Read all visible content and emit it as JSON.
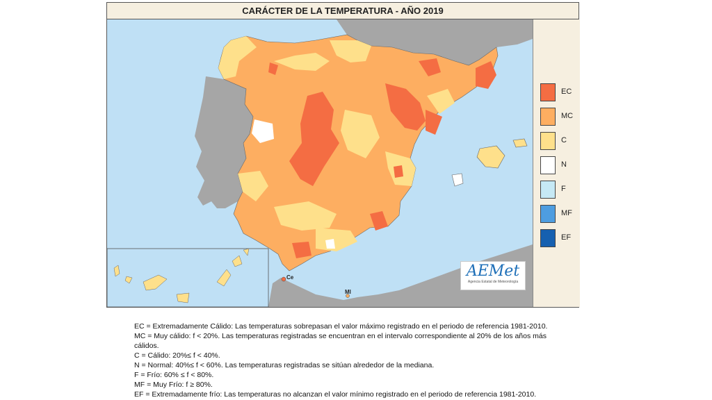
{
  "map": {
    "title": "CARÁCTER DE LA TEMPERATURA - AÑO 2019",
    "place_labels": {
      "ceuta": "Ce",
      "melilla": "Ml"
    },
    "logo": {
      "text": "AEMet",
      "subtitle": "Agencia Estatal de Meteorología"
    },
    "colors": {
      "sea": "#bfe0f5",
      "land_other": "#a6a6a6",
      "EC": "#f46d43",
      "MC": "#fdae61",
      "C": "#fee08b",
      "N": "#ffffff",
      "F": "#c6e9f5",
      "MF": "#4e9de0",
      "EF": "#1660b0"
    }
  },
  "legend": {
    "items": [
      {
        "code": "EC",
        "color": "#f46d43"
      },
      {
        "code": "MC",
        "color": "#fdae61"
      },
      {
        "code": "C",
        "color": "#fee08b"
      },
      {
        "code": "N",
        "color": "#ffffff"
      },
      {
        "code": "F",
        "color": "#c6e9f5"
      },
      {
        "code": "MF",
        "color": "#4e9de0"
      },
      {
        "code": "EF",
        "color": "#1660b0"
      }
    ]
  },
  "notes": {
    "ec": "EC = Extremadamente Cálido: Las temperaturas sobrepasan el valor máximo registrado en el periodo de referencia 1981-2010.",
    "mc1": "MC = Muy cálido: f < 20%. Las temperaturas registradas se encuentran en el intervalo correspondiente al 20% de los años más",
    "mc2": "cálidos.",
    "c": "C = Cálido: 20%≤ f < 40%.",
    "n": "N = Normal: 40%≤ f < 60%. Las temperaturas registradas se sitúan alrededor de la mediana.",
    "f": "F = Frío: 60% ≤ f < 80%.",
    "mf": "MF = Muy Frío: f ≥ 80%.",
    "ef": "EF = Extremadamente frío: Las temperaturas no alcanzan el valor mínimo registrado en el periodo de referencia 1981-2010."
  }
}
